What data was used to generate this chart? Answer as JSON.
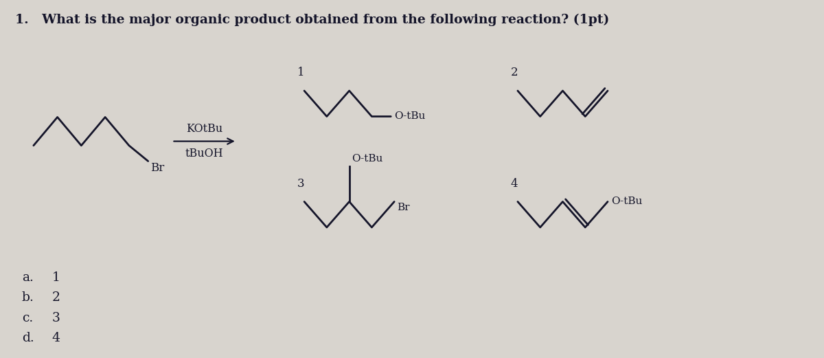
{
  "title": "1.   What is the major organic product obtained from the following reaction? (1pt)",
  "bg_color": "#d8d4ce",
  "text_color": "#15152a",
  "choices_labels": [
    "a.",
    "b.",
    "c.",
    "d."
  ],
  "choices_nums": [
    "1",
    "2",
    "3",
    "4"
  ],
  "reagent_above": "KOtBu",
  "reagent_below": "tBuOH",
  "reactant_br_label": "Br",
  "label1": "1",
  "label2": "2",
  "label3": "3",
  "label4": "4",
  "otbu_label": "O-tBu",
  "br_label": "Br"
}
